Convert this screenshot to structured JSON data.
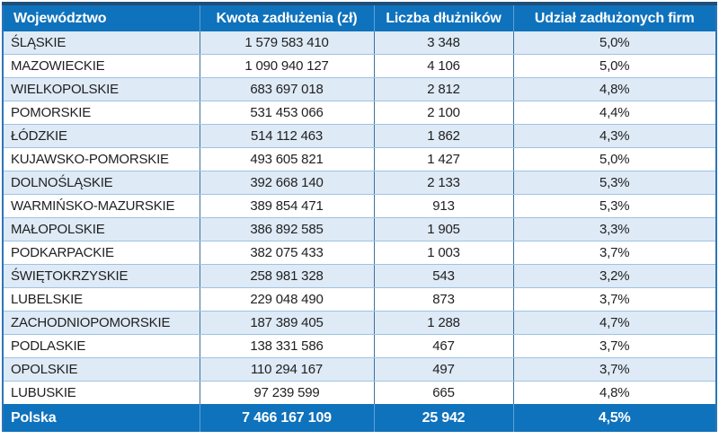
{
  "chart_data": {
    "type": "table",
    "columns": [
      {
        "label": "Województwo"
      },
      {
        "label": "Kwota zadłużenia (zł)"
      },
      {
        "label": "Liczba dłużników"
      },
      {
        "label": "Udział zadłużonych firm"
      }
    ],
    "rows": [
      [
        "ŚLĄSKIE",
        "1 579 583 410",
        "3 348",
        "5,0%"
      ],
      [
        "MAZOWIECKIE",
        "1 090 940 127",
        "4 106",
        "5,0%"
      ],
      [
        "WIELKOPOLSKIE",
        "683 697 018",
        "2 812",
        "4,8%"
      ],
      [
        "POMORSKIE",
        "531 453 066",
        "2 100",
        "4,4%"
      ],
      [
        "ŁÓDZKIE",
        "514 112 463",
        "1 862",
        "4,3%"
      ],
      [
        "KUJAWSKO-POMORSKIE",
        "493 605 821",
        "1 427",
        "5,0%"
      ],
      [
        "DOLNOŚLĄSKIE",
        "392 668 140",
        "2 133",
        "5,3%"
      ],
      [
        "WARMIŃSKO-MAZURSKIE",
        "389 854 471",
        "913",
        "5,3%"
      ],
      [
        "MAŁOPOLSKIE",
        "386 892 585",
        "1 905",
        "3,3%"
      ],
      [
        "PODKARPACKIE",
        "382 075 433",
        "1 003",
        "3,7%"
      ],
      [
        "ŚWIĘTOKRZYSKIE",
        "258 981 328",
        "543",
        "3,2%"
      ],
      [
        "LUBELSKIE",
        "229 048 490",
        "873",
        "3,7%"
      ],
      [
        "ZACHODNIOPOMORSKIE",
        "187 389 405",
        "1 288",
        "4,7%"
      ],
      [
        "PODLASKIE",
        "138 331 586",
        "467",
        "3,7%"
      ],
      [
        "OPOLSKIE",
        "110 294 167",
        "497",
        "3,7%"
      ],
      [
        "LUBUSKIE",
        "97 239 599",
        "665",
        "4,8%"
      ]
    ],
    "footer": [
      "Polska",
      "7 466 167 109",
      "25 942",
      "4,5%"
    ]
  },
  "colors": {
    "header_bg": "#0F72BC",
    "footer_bg": "#0F72BC",
    "band_row_bg": "#DEEAF6",
    "plain_row_bg": "#FFFFFF",
    "top_border": "#1F4E79",
    "outer_border": "#2E75B6",
    "column_border": "#41719C",
    "row_border": "#9DC3E6",
    "header_separator": "#5FA0D6",
    "header_text": "#FFFFFF",
    "body_text": "#1F1F1F"
  }
}
